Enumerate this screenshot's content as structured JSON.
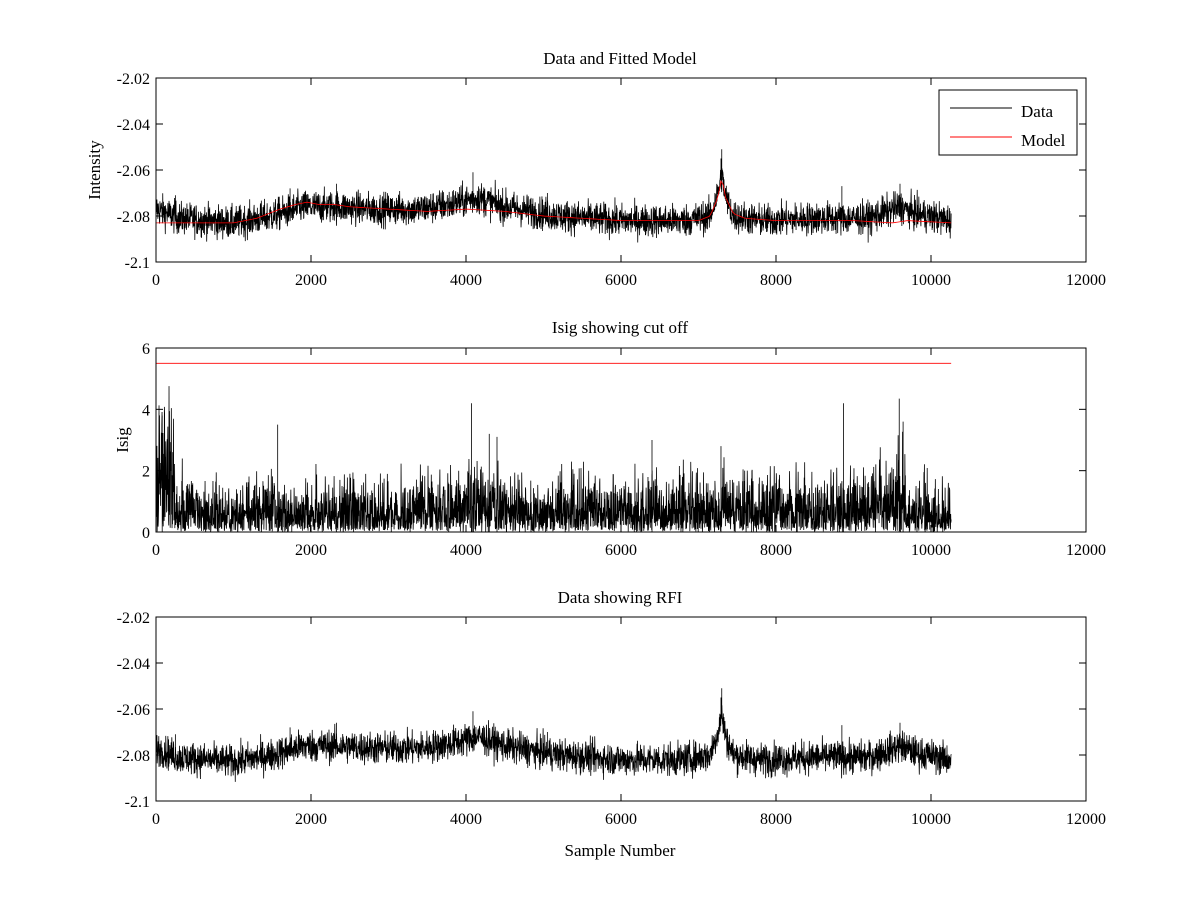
{
  "figure": {
    "background": "#ffffff",
    "colors": {
      "data": "#000000",
      "model": "#ff0000",
      "axes": "#000000"
    }
  },
  "chart_data": [
    {
      "type": "line",
      "title": "Data and Fitted Model",
      "xlabel": "",
      "ylabel": "Intensity",
      "xlim": [
        0,
        12000
      ],
      "ylim": [
        -2.1,
        -2.02
      ],
      "xticks": [
        0,
        2000,
        4000,
        6000,
        8000,
        10000,
        12000
      ],
      "yticks": [
        -2.1,
        -2.08,
        -2.06,
        -2.04,
        -2.02
      ],
      "xtick_labels": [
        "0",
        "2000",
        "4000",
        "6000",
        "8000",
        "10000",
        "12000"
      ],
      "ytick_labels": [
        "-2.1",
        "-2.08",
        "-2.06",
        "-2.04",
        "-2.02"
      ],
      "legend": {
        "position": "top-right",
        "entries": [
          "Data",
          "Model"
        ]
      },
      "series": [
        {
          "name": "Data",
          "color": "#000000",
          "style": "noisy",
          "x": [
            0,
            300,
            1000,
            1500,
            1900,
            2300,
            2800,
            3400,
            3800,
            4150,
            4500,
            5200,
            6000,
            6800,
            7150,
            7250,
            7300,
            7350,
            7450,
            7800,
            8500,
            9200,
            9600,
            9800,
            10260
          ],
          "y": [
            -2.077,
            -2.081,
            -2.083,
            -2.08,
            -2.076,
            -2.076,
            -2.077,
            -2.077,
            -2.075,
            -2.072,
            -2.076,
            -2.08,
            -2.082,
            -2.082,
            -2.08,
            -2.07,
            -2.062,
            -2.072,
            -2.08,
            -2.082,
            -2.081,
            -2.081,
            -2.076,
            -2.079,
            -2.082
          ],
          "noise_amplitude": 0.0035,
          "spikes": [
            [
              7300,
              -2.051
            ],
            [
              7290,
              -2.055
            ],
            [
              4090,
              -2.061
            ],
            [
              2330,
              -2.066
            ],
            [
              9600,
              -2.066
            ],
            [
              8850,
              -2.067
            ],
            [
              1730,
              -2.068
            ],
            [
              5050,
              -2.07
            ],
            [
              250,
              -2.071
            ]
          ]
        },
        {
          "name": "Model",
          "color": "#ff0000",
          "style": "smooth",
          "x": [
            0,
            300,
            1000,
            1300,
            1600,
            1800,
            1950,
            2100,
            2300,
            2500,
            3000,
            3500,
            4000,
            4500,
            5000,
            5500,
            6000,
            6500,
            7000,
            7150,
            7250,
            7300,
            7350,
            7450,
            7600,
            8000,
            8500,
            9000,
            9500,
            9700,
            10260
          ],
          "y": [
            -2.083,
            -2.083,
            -2.083,
            -2.081,
            -2.077,
            -2.075,
            -2.074,
            -2.075,
            -2.075,
            -2.076,
            -2.077,
            -2.078,
            -2.077,
            -2.078,
            -2.08,
            -2.081,
            -2.082,
            -2.082,
            -2.082,
            -2.08,
            -2.072,
            -2.063,
            -2.072,
            -2.079,
            -2.081,
            -2.082,
            -2.082,
            -2.082,
            -2.083,
            -2.082,
            -2.083
          ]
        }
      ]
    },
    {
      "type": "line",
      "title": "Isig showing cut off",
      "xlabel": "",
      "ylabel": "Isig",
      "xlim": [
        0,
        12000
      ],
      "ylim": [
        0,
        6
      ],
      "xticks": [
        0,
        2000,
        4000,
        6000,
        8000,
        10000,
        12000
      ],
      "yticks": [
        0,
        2,
        4,
        6
      ],
      "xtick_labels": [
        "0",
        "2000",
        "4000",
        "6000",
        "8000",
        "10000",
        "12000"
      ],
      "ytick_labels": [
        "0",
        "2",
        "4",
        "6"
      ],
      "series": [
        {
          "name": "Isig",
          "color": "#000000",
          "style": "abs-noise",
          "x": [
            0,
            100,
            300,
            1000,
            2000,
            3000,
            4000,
            4100,
            4300,
            5000,
            6000,
            7000,
            8000,
            9000,
            9500,
            9600,
            9700,
            10260
          ],
          "y": [
            1.5,
            2.2,
            0.9,
            0.8,
            0.8,
            0.8,
            0.9,
            1.2,
            0.9,
            0.8,
            0.9,
            0.9,
            0.9,
            0.9,
            1.2,
            1.6,
            0.9,
            0.8
          ],
          "spikes": [
            [
              9590,
              4.35
            ],
            [
              4070,
              4.2
            ],
            [
              8870,
              4.2
            ],
            [
              80,
              3.8
            ],
            [
              1570,
              3.5
            ],
            [
              7290,
              2.8
            ],
            [
              4300,
              3.2
            ],
            [
              9640,
              3.6
            ],
            [
              4400,
              3.1
            ],
            [
              6400,
              3.0
            ]
          ]
        },
        {
          "name": "Cut off",
          "color": "#ff0000",
          "style": "smooth",
          "x": [
            0,
            10260
          ],
          "y": [
            5.5,
            5.5
          ]
        }
      ]
    },
    {
      "type": "line",
      "title": "Data showing RFI",
      "xlabel": "Sample Number",
      "ylabel": "",
      "xlim": [
        0,
        12000
      ],
      "ylim": [
        -2.1,
        -2.02
      ],
      "xticks": [
        0,
        2000,
        4000,
        6000,
        8000,
        10000,
        12000
      ],
      "yticks": [
        -2.1,
        -2.08,
        -2.06,
        -2.04,
        -2.02
      ],
      "xtick_labels": [
        "0",
        "2000",
        "4000",
        "6000",
        "8000",
        "10000",
        "12000"
      ],
      "ytick_labels": [
        "-2.1",
        "-2.08",
        "-2.06",
        "-2.04",
        "-2.02"
      ],
      "series": [
        {
          "name": "Data",
          "color": "#000000",
          "style": "noisy",
          "x": [
            0,
            300,
            1000,
            1500,
            1900,
            2300,
            2800,
            3400,
            3800,
            4150,
            4500,
            5200,
            6000,
            6800,
            7150,
            7250,
            7300,
            7350,
            7450,
            7800,
            8500,
            9200,
            9600,
            9800,
            10260
          ],
          "y": [
            -2.077,
            -2.081,
            -2.083,
            -2.08,
            -2.076,
            -2.076,
            -2.077,
            -2.077,
            -2.075,
            -2.072,
            -2.076,
            -2.08,
            -2.082,
            -2.082,
            -2.08,
            -2.07,
            -2.062,
            -2.072,
            -2.08,
            -2.082,
            -2.081,
            -2.081,
            -2.076,
            -2.079,
            -2.082
          ],
          "noise_amplitude": 0.0035,
          "spikes": [
            [
              7300,
              -2.051
            ],
            [
              7290,
              -2.055
            ],
            [
              4090,
              -2.061
            ],
            [
              2330,
              -2.066
            ],
            [
              9600,
              -2.066
            ],
            [
              8850,
              -2.067
            ],
            [
              1730,
              -2.068
            ],
            [
              5050,
              -2.07
            ],
            [
              250,
              -2.071
            ]
          ]
        }
      ]
    }
  ]
}
